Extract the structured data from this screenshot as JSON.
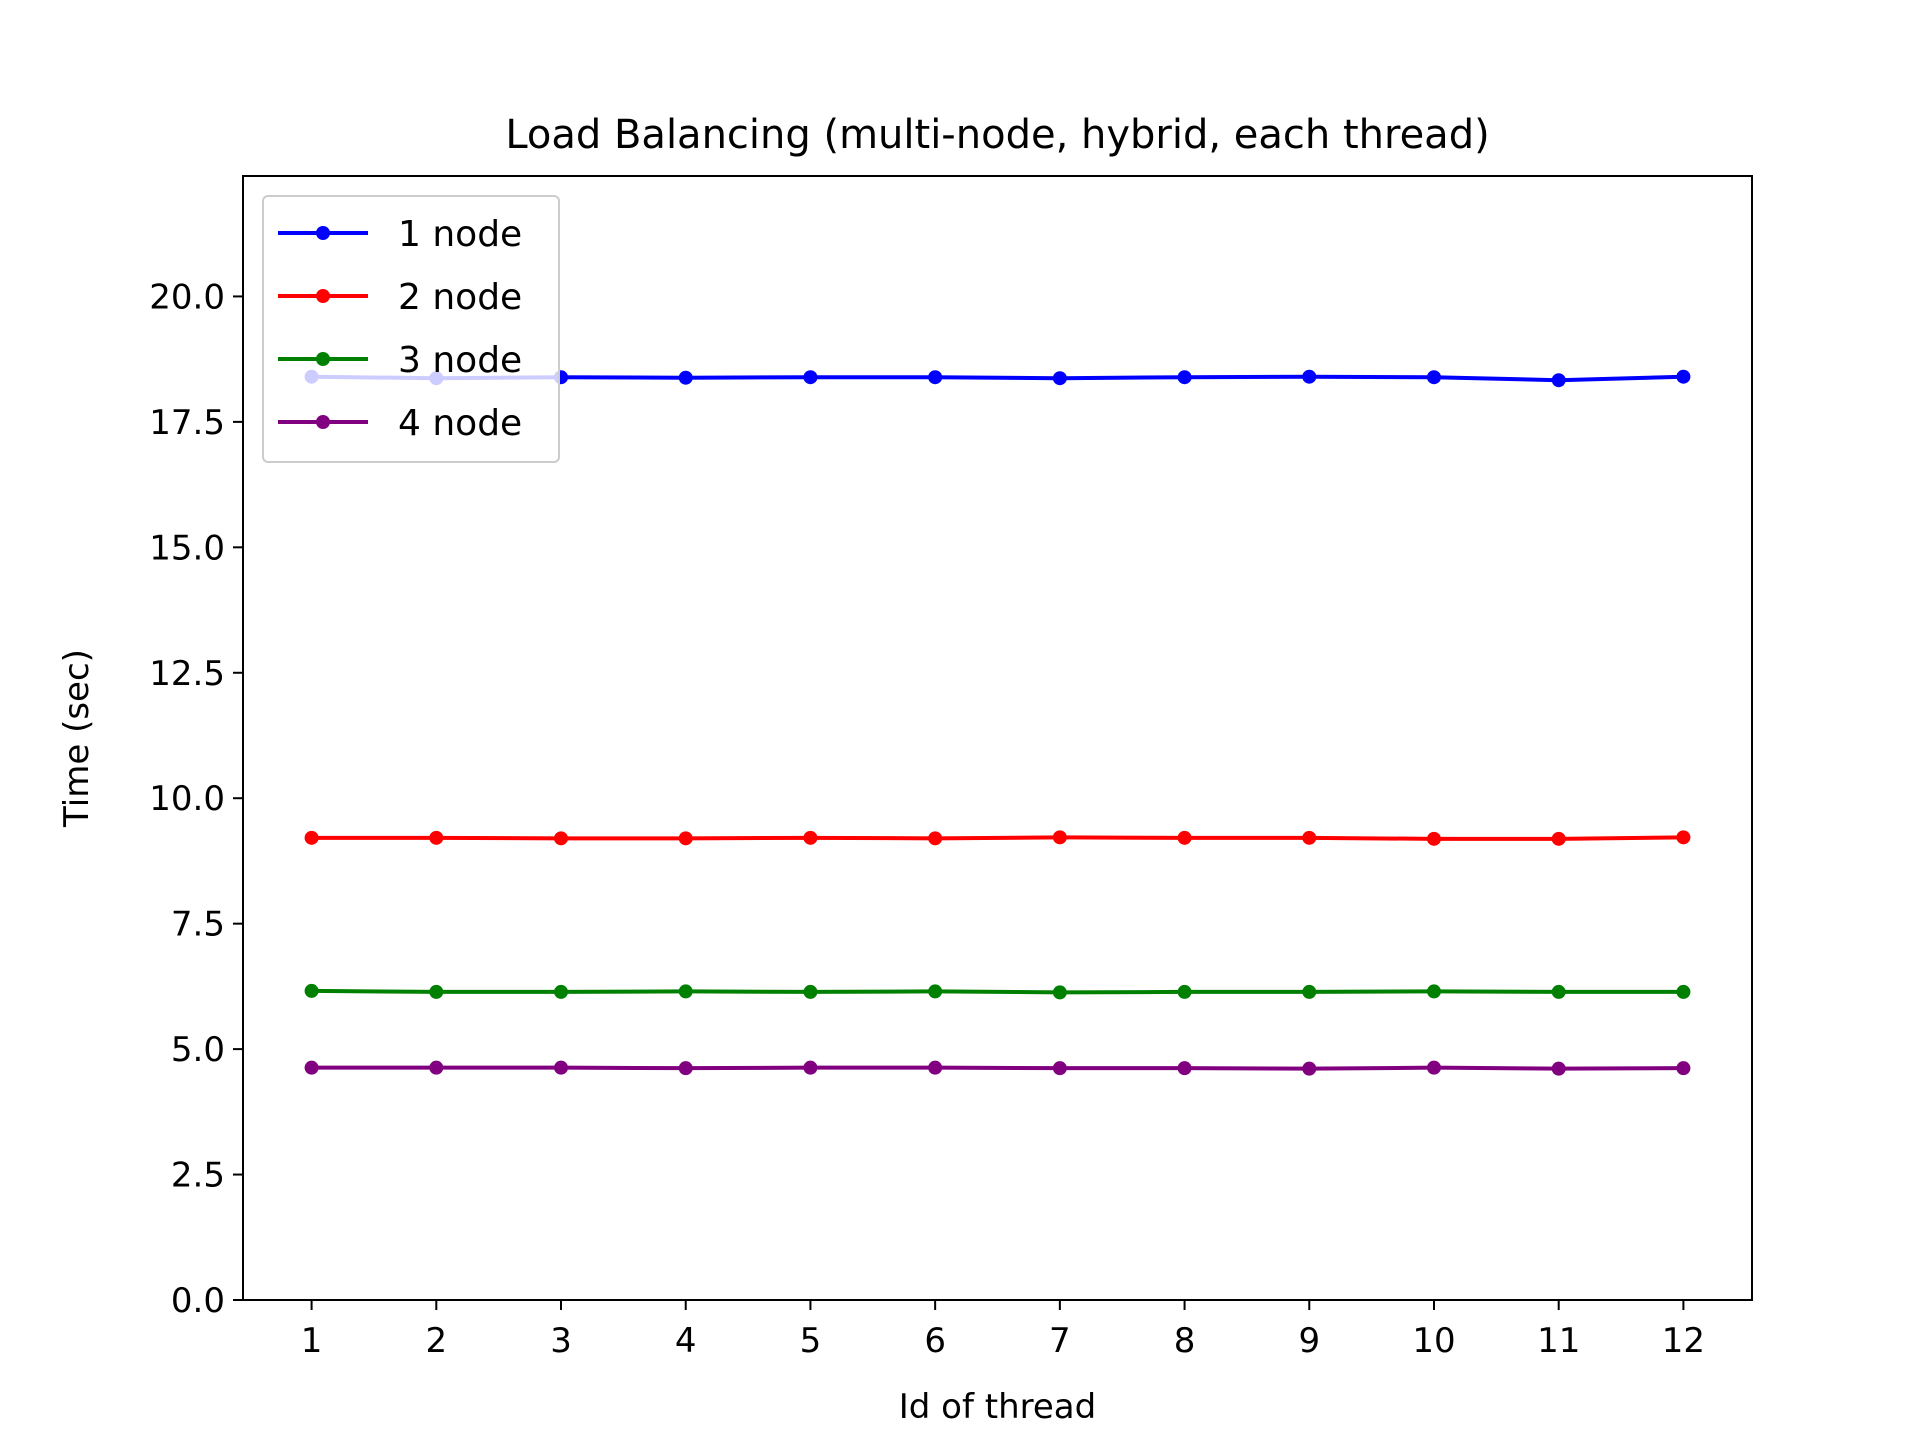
{
  "chart_data": {
    "type": "line",
    "title": "Load Balancing (multi-node, hybrid, each thread)",
    "xlabel": "Id of thread",
    "ylabel": "Time (sec)",
    "x": [
      1,
      2,
      3,
      4,
      5,
      6,
      7,
      8,
      9,
      10,
      11,
      12
    ],
    "x_ticks": [
      "1",
      "2",
      "3",
      "4",
      "5",
      "6",
      "7",
      "8",
      "9",
      "10",
      "11",
      "12"
    ],
    "xlim": [
      0.45,
      12.55
    ],
    "ylim": [
      0,
      22.4
    ],
    "y_ticks": [
      "0.0",
      "2.5",
      "5.0",
      "7.5",
      "10.0",
      "12.5",
      "15.0",
      "17.5",
      "20.0"
    ],
    "grid": false,
    "legend_position": "upper-left",
    "series": [
      {
        "name": "1 node",
        "color": "#0000ff",
        "values": [
          18.4,
          18.37,
          18.39,
          18.38,
          18.39,
          18.39,
          18.37,
          18.39,
          18.4,
          18.39,
          18.33,
          18.4
        ]
      },
      {
        "name": "2 node",
        "color": "#ff0000",
        "values": [
          9.21,
          9.21,
          9.2,
          9.2,
          9.21,
          9.2,
          9.22,
          9.21,
          9.21,
          9.19,
          9.19,
          9.22
        ]
      },
      {
        "name": "3 node",
        "color": "#008000",
        "values": [
          6.16,
          6.14,
          6.14,
          6.15,
          6.14,
          6.15,
          6.13,
          6.14,
          6.14,
          6.15,
          6.14,
          6.14
        ]
      },
      {
        "name": "4 node",
        "color": "#800080",
        "values": [
          4.63,
          4.63,
          4.63,
          4.62,
          4.63,
          4.63,
          4.62,
          4.62,
          4.61,
          4.63,
          4.61,
          4.62
        ]
      }
    ]
  }
}
